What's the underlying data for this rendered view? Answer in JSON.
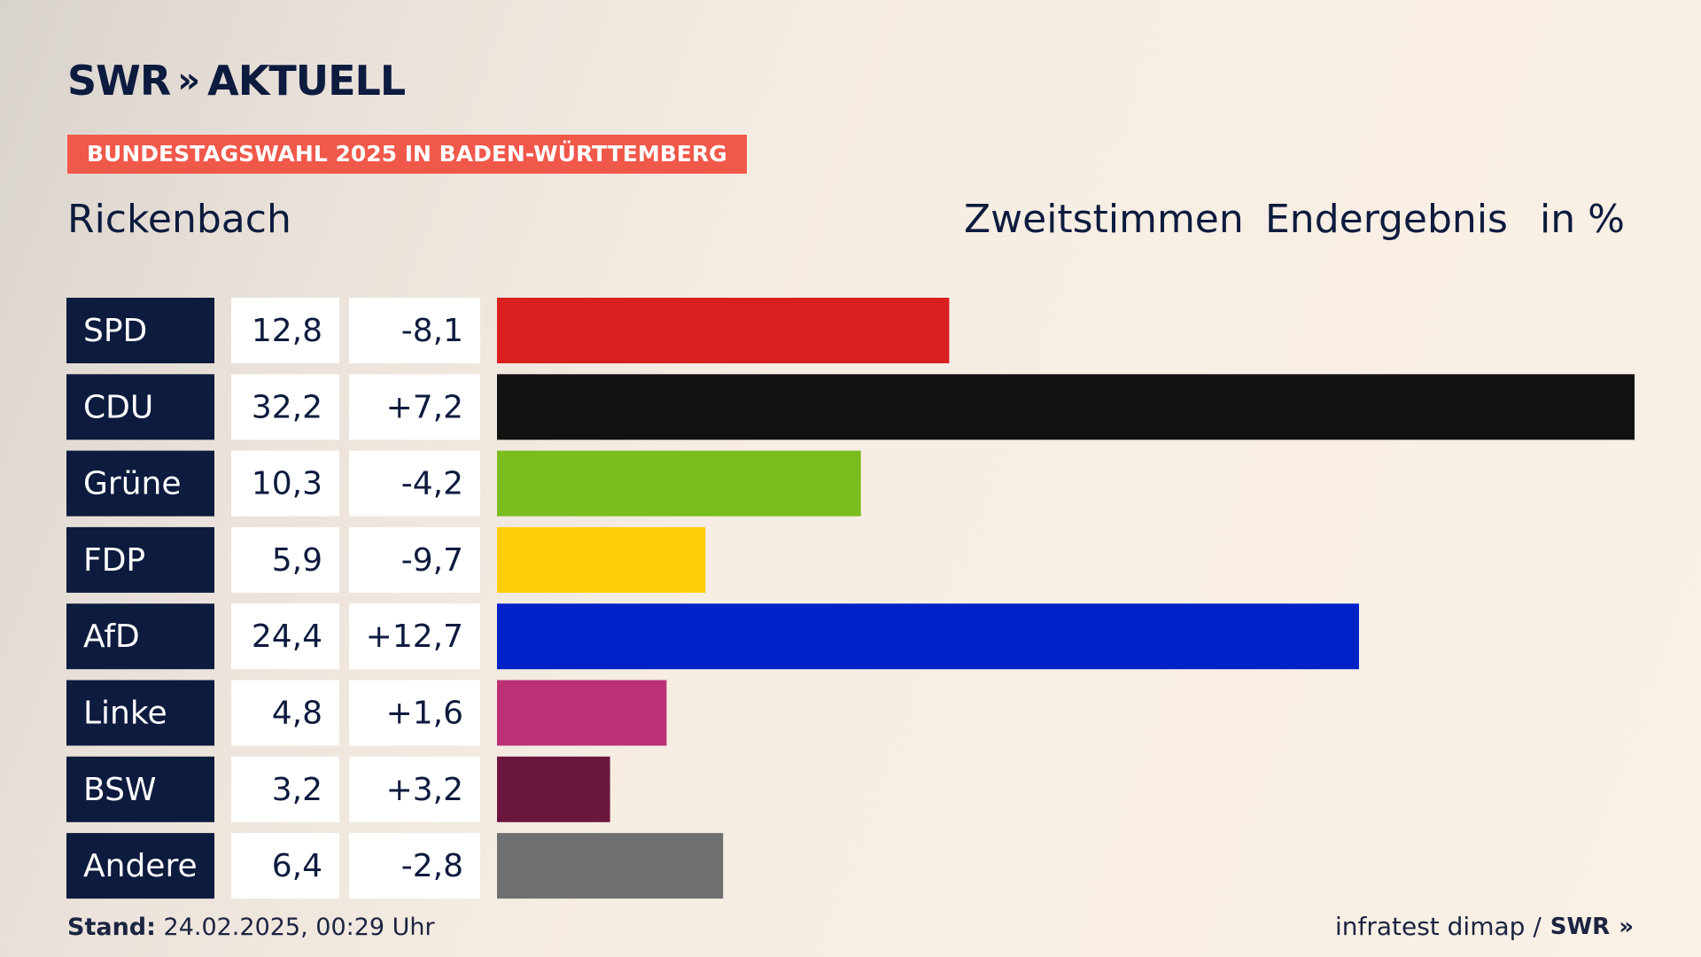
{
  "logo": {
    "brand": "SWR",
    "chevrons": "»",
    "product": "AKTUELL"
  },
  "banner": "BUNDESTAGSWAHL 2025 IN BADEN-WÜRTTEMBERG",
  "header": {
    "place": "Rickenbach",
    "vote_type": "Zweitstimmen",
    "status": "Endergebnis",
    "unit": "in %"
  },
  "footer": {
    "stand_label": "Stand:",
    "stand_value": "24.02.2025, 00:29 Uhr",
    "source": "infratest dimap /",
    "brand": "SWR"
  },
  "chart_data": {
    "type": "bar",
    "orientation": "horizontal",
    "categories": [
      "SPD",
      "CDU",
      "Grüne",
      "FDP",
      "AfD",
      "Linke",
      "BSW",
      "Andere"
    ],
    "values": [
      12.8,
      32.2,
      10.3,
      5.9,
      24.4,
      4.8,
      3.2,
      6.4
    ],
    "value_labels": [
      "12,8",
      "32,2",
      "10,3",
      "5,9",
      "24,4",
      "4,8",
      "3,2",
      "6,4"
    ],
    "change_labels": [
      "-8,1",
      "+7,2",
      "-4,2",
      "-9,7",
      "+12,7",
      "+1,6",
      "+3,2",
      "-2,8"
    ],
    "colors": [
      "#d91f1f",
      "#121212",
      "#79bd1e",
      "#ffcc0a",
      "#0021c7",
      "#bb3175",
      "#6a163d",
      "#6f7072"
    ],
    "label_bg": "#0d1b3e",
    "cell_bg": "#ffffff",
    "xlim": [
      0,
      32.2
    ]
  }
}
